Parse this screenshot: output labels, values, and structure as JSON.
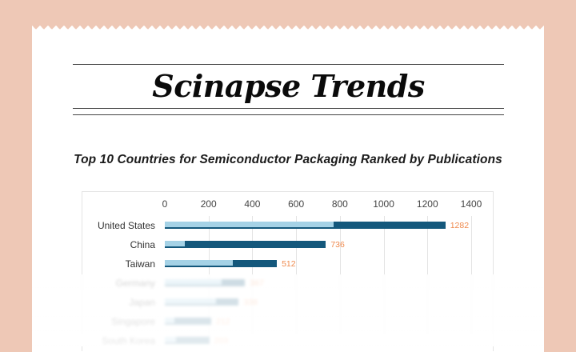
{
  "colors": {
    "background": "#eec8b6",
    "paper": "#ffffff",
    "bar_light": "#a5d2e6",
    "bar_dark": "#14587c",
    "value_label": "#ef8a4e"
  },
  "masthead": {
    "title": "Scinapse Trends"
  },
  "chart_data": {
    "type": "bar",
    "orientation": "horizontal",
    "title": "Top 10 Countries for Semiconductor Packaging Ranked by Publications",
    "xlabel": "",
    "ylabel": "",
    "xlim": [
      0,
      1400
    ],
    "x_ticks": [
      "0",
      "200",
      "400",
      "600",
      "800",
      "1000",
      "1200",
      "1400"
    ],
    "grid": true,
    "legend": "none",
    "categories": [
      "United States",
      "China",
      "Taiwan",
      "Germany",
      "Japan",
      "Singapore",
      "South Korea"
    ],
    "values": [
      1282,
      736,
      512,
      367,
      338,
      212,
      203
    ],
    "series": [
      {
        "name": "light-segment",
        "color": "#a5d2e6",
        "values": [
          770,
          90,
          310,
          260,
          235,
          45,
          50
        ]
      },
      {
        "name": "dark-segment",
        "color": "#14587c",
        "values": [
          512,
          646,
          202,
          107,
          103,
          167,
          153
        ]
      }
    ],
    "value_labels": [
      "1282",
      "736",
      "512",
      "367",
      "338",
      "212",
      "203"
    ],
    "note": "Top 10 listed in title; only 7 rows visible, rows below Taiwan appear faded/blurred"
  }
}
